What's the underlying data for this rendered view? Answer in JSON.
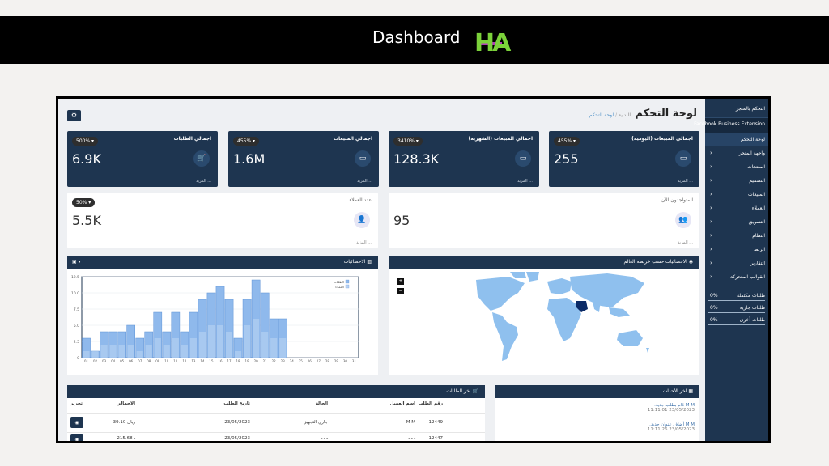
{
  "slide": {
    "title": "Dashboard",
    "logo_text": "HA"
  },
  "header": {
    "title": "لوحة التحكم",
    "crumb_home": "البداية",
    "crumb_current": "لوحة التحكم",
    "tool_icon": "gears-icon"
  },
  "sidebar": {
    "title": "التحكم بالمتجر",
    "integration": "Facebook Business Extension",
    "items": [
      {
        "label": "لوحة التحكم"
      },
      {
        "label": "واجهة المتجر"
      },
      {
        "label": "المنتجات"
      },
      {
        "label": "التصميم"
      },
      {
        "label": "المبيعات"
      },
      {
        "label": "العملاء"
      },
      {
        "label": "التسويق"
      },
      {
        "label": "النظام"
      },
      {
        "label": "الربط"
      },
      {
        "label": "التقارير"
      },
      {
        "label": "القوالب المتحركة"
      }
    ],
    "stats": [
      {
        "label": "طلبات مكتملة",
        "pct": "0%"
      },
      {
        "label": "طلبات جارية",
        "pct": "0%"
      },
      {
        "label": "طلبات أخرى",
        "pct": "0%"
      }
    ]
  },
  "cards": [
    {
      "label": "اجمالي المبيعات (اليومية)",
      "badge": "455% ▾",
      "value": "255",
      "more": "المزيد ...",
      "icon": "credit-card-icon"
    },
    {
      "label": "اجمالي المبيعات (الشهرية)",
      "badge": "3410% ▾",
      "value": "128.3K",
      "more": "المزيد ...",
      "icon": "credit-card-icon"
    },
    {
      "label": "اجمالي المبيعات",
      "badge": "455% ▾",
      "value": "1.6M",
      "more": "المزيد ...",
      "icon": "credit-card-icon"
    },
    {
      "label": "اجمالي الطلبات",
      "badge": "500% ▾",
      "value": "6.9K",
      "more": "المزيد ...",
      "icon": "cart-icon"
    }
  ],
  "cards2": [
    {
      "label": "المتواجدون الآن",
      "value": "95",
      "more": "المزيد ...",
      "icon": "users-icon"
    },
    {
      "label": "عدد العملاء",
      "badge": "50% ▾",
      "value": "5.5K",
      "more": "المزيد ...",
      "icon": "user-icon"
    }
  ],
  "stats_panel": {
    "title": "الاحصائيات",
    "legend": [
      "الطلبات",
      "العملاء"
    ]
  },
  "map_panel": {
    "title": "الاحصائيات حسب خريطة العالم",
    "zoom_in": "+",
    "zoom_out": "−"
  },
  "chart_data": {
    "type": "bar",
    "categories": [
      "01",
      "02",
      "03",
      "04",
      "05",
      "06",
      "07",
      "08",
      "09",
      "10",
      "11",
      "12",
      "13",
      "14",
      "15",
      "16",
      "17",
      "18",
      "19",
      "20",
      "21",
      "22",
      "23",
      "24",
      "25",
      "26",
      "27",
      "28",
      "29",
      "30",
      "31"
    ],
    "series": [
      {
        "name": "الطلبات",
        "values": [
          3,
          1,
          4,
          4,
          4,
          5,
          3,
          4,
          7,
          4,
          7,
          4,
          7,
          9,
          10,
          11,
          9,
          3,
          9,
          12,
          10,
          6,
          6,
          0,
          0,
          0,
          0,
          0,
          0,
          0,
          0
        ]
      },
      {
        "name": "العملاء",
        "values": [
          1,
          1,
          2,
          2,
          2,
          2,
          1,
          2,
          3,
          2,
          3,
          2,
          3,
          4,
          5,
          5,
          4,
          1,
          5,
          6,
          4,
          3,
          3,
          0,
          0,
          0,
          0,
          0,
          0,
          0,
          0
        ]
      }
    ],
    "yticks": [
      "0",
      "2.5",
      "5.0",
      "7.5",
      "10.0",
      "12.5"
    ],
    "ylim": [
      0,
      12.5
    ],
    "grid": true,
    "legend": "top-right"
  },
  "orders": {
    "title": "آخر الطلبات",
    "columns": [
      "رقم الطلب",
      "اسم العميل",
      "الحالة",
      "تاريخ الطلب",
      "الاجمالي",
      "تحرير"
    ],
    "rows": [
      {
        "id": "12449",
        "customer": "M M",
        "status": "جاري التجهيز",
        "date": "23/05/2023",
        "total": "39.10 ريال"
      },
      {
        "id": "12447",
        "customer": "ـ ـ ـ",
        "status": "ـ ـ ـ",
        "date": "23/05/2023",
        "total": "215.68 ـ"
      }
    ]
  },
  "events": {
    "title": "آخر الأحداث",
    "items": [
      {
        "text": "M M قام بطلب جديد.",
        "date": "23/05/2023 11:11:01"
      },
      {
        "text": "M M أضاف عنوان جديد.",
        "date": "23/05/2023 11:11:26"
      }
    ]
  }
}
